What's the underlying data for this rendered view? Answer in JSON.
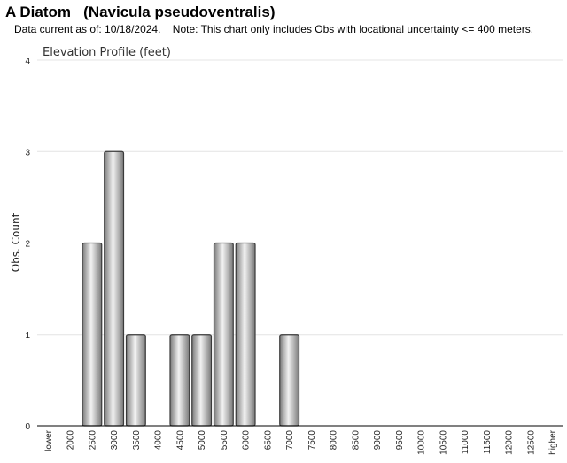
{
  "header": {
    "title": "A Diatom   (Navicula pseudoventralis)",
    "subtitle": "Data current as of: 10/18/2024.    Note: This chart only includes Obs with locational uncertainty <= 400 meters."
  },
  "colors": {
    "bar_light": "#f2f2f2",
    "bar_dark": "#7a7a7a",
    "bar_stroke": "#3a3a3a",
    "gridline": "#e4e4e4",
    "axis": "#000000"
  },
  "chart_data": {
    "type": "bar",
    "title": "Elevation Profile (feet)",
    "xlabel": "",
    "ylabel": "Obs. Count",
    "ylim": [
      0,
      4
    ],
    "yticks": [
      0,
      1,
      2,
      3,
      4
    ],
    "grid": true,
    "categories": [
      "lower",
      "2000",
      "2500",
      "3000",
      "3500",
      "4000",
      "4500",
      "5000",
      "5500",
      "6000",
      "6500",
      "7000",
      "7500",
      "8000",
      "8500",
      "9000",
      "9500",
      "10000",
      "10500",
      "11000",
      "11500",
      "12000",
      "12500",
      "higher"
    ],
    "values": [
      0,
      0,
      2,
      3,
      1,
      0,
      1,
      1,
      2,
      2,
      0,
      1,
      0,
      0,
      0,
      0,
      0,
      0,
      0,
      0,
      0,
      0,
      0,
      0
    ]
  }
}
